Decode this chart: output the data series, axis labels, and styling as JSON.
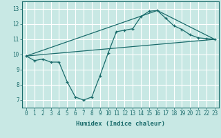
{
  "title": "",
  "xlabel": "Humidex (Indice chaleur)",
  "ylabel": "",
  "bg_color": "#c8e8e4",
  "line_color": "#1a6b6b",
  "grid_color": "#ffffff",
  "xlim": [
    -0.5,
    23.5
  ],
  "ylim": [
    6.5,
    13.5
  ],
  "xticks": [
    0,
    1,
    2,
    3,
    4,
    5,
    6,
    7,
    8,
    9,
    10,
    11,
    12,
    13,
    14,
    15,
    16,
    17,
    18,
    19,
    20,
    21,
    22,
    23
  ],
  "yticks": [
    7,
    8,
    9,
    10,
    11,
    12,
    13
  ],
  "line1_x": [
    0,
    1,
    2,
    3,
    4,
    5,
    6,
    7,
    8,
    9,
    10,
    11,
    12,
    13,
    14,
    15,
    16,
    17,
    18,
    19,
    20,
    21,
    22,
    23
  ],
  "line1_y": [
    9.9,
    9.6,
    9.7,
    9.5,
    9.5,
    8.2,
    7.2,
    7.0,
    7.2,
    8.6,
    10.1,
    11.5,
    11.6,
    11.7,
    12.5,
    12.85,
    12.9,
    12.4,
    11.9,
    11.65,
    11.3,
    11.1,
    11.05,
    11.0
  ],
  "line2_x": [
    0,
    23
  ],
  "line2_y": [
    9.9,
    11.0
  ],
  "line3_x": [
    0,
    16,
    23
  ],
  "line3_y": [
    9.9,
    12.9,
    11.0
  ]
}
